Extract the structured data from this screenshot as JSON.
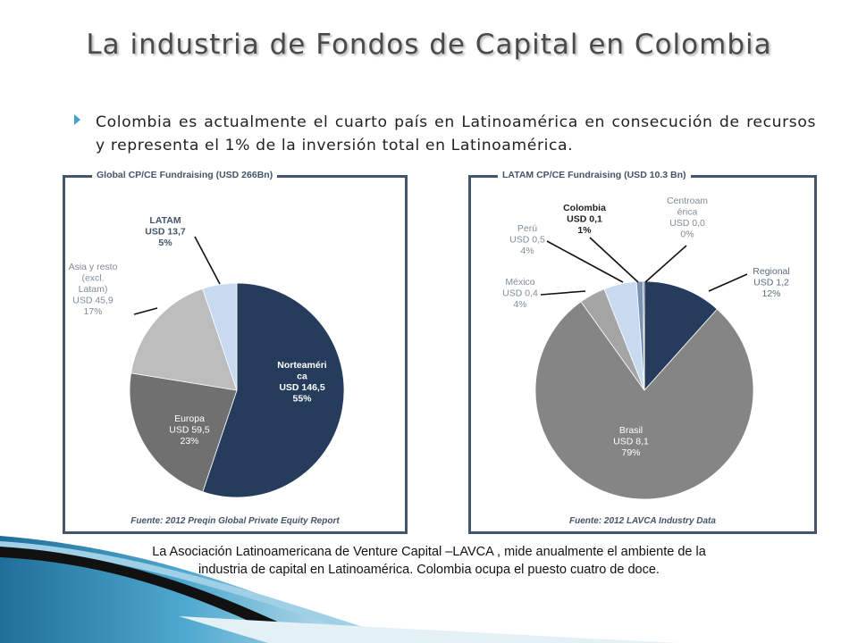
{
  "title": "La industria de Fondos de Capital en Colombia",
  "bullet": "Colombia es actualmente el cuarto país en Latinoamérica en consecución de recursos y representa el 1% de la inversión total en Latinoamérica.",
  "caption": {
    "line1": "La Asociación Latinoamericana de Venture Capital –LAVCA , mide anualmente el ambiente de la",
    "line2": "industria de capital en Latinoamérica. Colombia ocupa el puesto cuatro de doce."
  },
  "colors": {
    "accent": "#3ea3c6",
    "navy": "#243b5a",
    "panel_border": "#44546a"
  },
  "chart_data": [
    {
      "type": "pie",
      "title": "Global CP/CE Fundraising (USD 266Bn)",
      "source": "Fuente: 2012 Preqin Global Private Equity Report",
      "slices": [
        {
          "name": "Norteamérica",
          "label_lines": [
            "Norteaméri",
            "ca"
          ],
          "value_text": "USD 146,5",
          "pct_text": "55%",
          "value": 146.5,
          "color": "#253c5c",
          "text_color": "#ffffff",
          "bold": true
        },
        {
          "name": "Europa",
          "label_lines": [
            "Europa"
          ],
          "value_text": "USD 59,5",
          "pct_text": "23%",
          "value": 59.5,
          "color": "#707070",
          "text_color": "#ffffff",
          "bold": false
        },
        {
          "name": "Asia y resto (excl. Latam)",
          "label_lines": [
            "Asia y resto",
            "(excl.",
            "Latam)"
          ],
          "value_text": "USD 45,9",
          "pct_text": "17%",
          "value": 45.9,
          "color": "#bdbdbd",
          "text_color": "#7f8c99",
          "bold": false
        },
        {
          "name": "LATAM",
          "label_lines": [
            "LATAM"
          ],
          "value_text": "USD 13,7",
          "pct_text": "5%",
          "value": 13.7,
          "color": "#c7daf0",
          "text_color": "#44546a",
          "bold": true
        }
      ]
    },
    {
      "type": "pie",
      "title": "LATAM CP/CE Fundraising (USD 10.3 Bn)",
      "source": "Fuente: 2012 LAVCA Industry Data",
      "slices": [
        {
          "name": "Regional",
          "label_lines": [
            "Regional"
          ],
          "value_text": "USD 1,2",
          "pct_text": "12%",
          "value": 1.2,
          "color": "#253c5c",
          "text_color": "#5b6b7b",
          "bold": false
        },
        {
          "name": "Brasil",
          "label_lines": [
            "Brasil"
          ],
          "value_text": "USD 8,1",
          "pct_text": "79%",
          "value": 8.1,
          "color": "#858585",
          "text_color": "#ffffff",
          "bold": false
        },
        {
          "name": "México",
          "label_lines": [
            "México"
          ],
          "value_text": "USD 0,4",
          "pct_text": "4%",
          "value": 0.4,
          "color": "#a5a5a5",
          "text_color": "#7f8c99",
          "bold": false
        },
        {
          "name": "Perú",
          "label_lines": [
            "Perú"
          ],
          "value_text": "USD 0,5",
          "pct_text": "4%",
          "value": 0.5,
          "color": "#c7daf0",
          "text_color": "#7f8c99",
          "bold": false
        },
        {
          "name": "Colombia",
          "label_lines": [
            "Colombia"
          ],
          "value_text": "USD 0,1",
          "pct_text": "1%",
          "value": 0.1,
          "color": "#7a92b4",
          "text_color": "#1e1e1e",
          "bold": true
        },
        {
          "name": "Centroamérica",
          "label_lines": [
            "Centroam",
            "érica"
          ],
          "value_text": "USD 0,0",
          "pct_text": "0%",
          "value": 0.02,
          "color": "#44546a",
          "text_color": "#7f8c99",
          "bold": false
        }
      ]
    }
  ]
}
